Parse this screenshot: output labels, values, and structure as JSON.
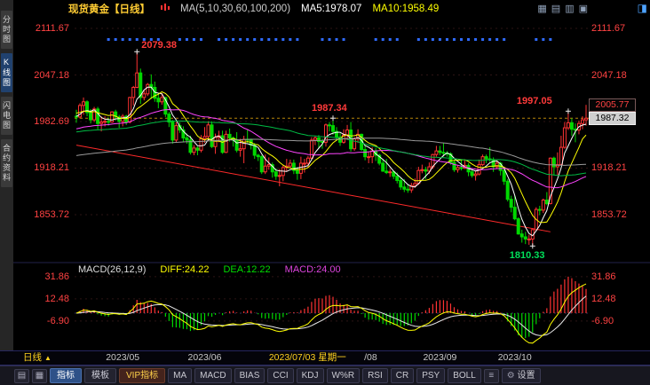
{
  "header": {
    "title": "现货黄金【日线】",
    "ma_label": "MA(5,10,30,60,100,200)",
    "ma5": "MA5:1978.07",
    "ma10": "MA10:1958.49",
    "window_icons": [
      "▦",
      "▤",
      "▥",
      "▣"
    ],
    "corner_icon": "◨"
  },
  "sidebar": {
    "tabs": [
      {
        "label": "分时图",
        "active": false
      },
      {
        "label": "K线图",
        "active": true
      },
      {
        "label": "闪电图",
        "active": false
      },
      {
        "label": "合约资料",
        "active": false
      }
    ]
  },
  "xaxis": {
    "period_label": "日线",
    "arrow": "▲"
  },
  "toolbar": {
    "left_icons": [
      "▤",
      "▦"
    ],
    "tabs": [
      {
        "label": "指标",
        "active": true
      },
      {
        "label": "模板",
        "active": false
      },
      {
        "label": "VIP指标",
        "vip": true
      }
    ],
    "indicators": [
      "MA",
      "MACD",
      "BIAS",
      "CCI",
      "KDJ",
      "W%R",
      "RSI",
      "CR",
      "PSY",
      "BOLL"
    ],
    "menu_icon": "≡",
    "gear_icon": "⚙",
    "settings_label": "设置"
  },
  "chart_data": {
    "type": "candlestick",
    "instrument": "现货黄金",
    "period": "日线",
    "price_axis_left_labels": [
      "2111.67",
      "2047.18",
      "1982.69",
      "1918.21",
      "1853.72"
    ],
    "price_axis_right_labels": [
      "2111.67",
      "2047.18",
      "1918.21",
      "1853.72"
    ],
    "price_boxes": {
      "high": {
        "text": "2005.77"
      },
      "last": {
        "text": "1987.32"
      }
    },
    "colors": {
      "up": "#ff3232",
      "down": "#00d800",
      "event_dot": "#2f6bff"
    },
    "annotations": [
      {
        "text": "2079.38",
        "day": 17,
        "price": 2079.38,
        "placement": "right",
        "color": "#ff3a3a",
        "marker": true
      },
      {
        "text": "1987.34",
        "day": 72,
        "price": 1987.34,
        "placement": "above",
        "color": "#ff3a3a",
        "marker": true
      },
      {
        "text": "1997.05",
        "day": 138,
        "price": 1997.05,
        "placement": "above-left",
        "color": "#ff3a3a",
        "marker": true
      },
      {
        "text": "1810.33",
        "day": 128,
        "price": 1810.33,
        "placement": "below",
        "color": "#00e05a",
        "marker": true
      }
    ],
    "trendline": {
      "from_day": 0,
      "from_price": 1950,
      "to_day": 133,
      "to_price": 1830,
      "color": "#ff2a2a"
    },
    "ma_settings": [
      {
        "window": 5,
        "color": "#ffffff",
        "seed": 1990
      },
      {
        "window": 10,
        "color": "#ffff00",
        "seed": 1995
      },
      {
        "window": 30,
        "color": "#ff44ff",
        "seed": 1972
      },
      {
        "window": 60,
        "color": "#00bb44",
        "seed": 1968
      },
      {
        "window": 100,
        "color": "#9a9a9a",
        "seed": 1935
      }
    ],
    "macd": {
      "label": "MACD(26,12,9)",
      "diff_label": "DIFF:24.22",
      "dea_label": "DEA:12.22",
      "macd_label": "MACD:24.00",
      "diff": 24.22,
      "dea": 12.22,
      "bar": 24.0,
      "axis_labels": [
        "31.86",
        "12.48",
        "-6.90"
      ],
      "diff_color": "#ffff00",
      "dea_color": "#e8e8e8"
    },
    "x_labels": [
      {
        "text": "2023/05",
        "day": 14,
        "style": "normal"
      },
      {
        "text": "2023/06",
        "day": 37,
        "style": "normal"
      },
      {
        "text": "2023/07/03 星期一",
        "day": 59,
        "style": "crosshair"
      },
      {
        "text": "/08",
        "day": 80,
        "style": "tail"
      },
      {
        "text": "2023/09",
        "day": 103,
        "style": "normal"
      },
      {
        "text": "2023/10",
        "day": 124,
        "style": "normal"
      }
    ],
    "event_dot_days": [
      9,
      11,
      13,
      15,
      17,
      19,
      21,
      23,
      29,
      31,
      33,
      35,
      40,
      42,
      44,
      46,
      48,
      50,
      52,
      54,
      56,
      58,
      60,
      62,
      69,
      71,
      73,
      75,
      84,
      86,
      88,
      90,
      96,
      98,
      100,
      102,
      104,
      106,
      108,
      110,
      112,
      114,
      116,
      118,
      120,
      129,
      131,
      133
    ],
    "candles": [
      [
        1990,
        1999,
        1981,
        1989
      ],
      [
        1989,
        2008,
        1987,
        2005
      ],
      [
        2005,
        2016,
        1992,
        2010
      ],
      [
        2010,
        2012,
        1990,
        1995
      ],
      [
        1995,
        2000,
        1980,
        1985
      ],
      [
        1985,
        2003,
        1982,
        2000
      ],
      [
        2000,
        2003,
        1972,
        1980
      ],
      [
        1980,
        1990,
        1969,
        1982
      ],
      [
        1982,
        1990,
        1976,
        1983
      ],
      [
        1983,
        1988,
        1977,
        1982
      ],
      [
        1982,
        1997,
        1981,
        1996
      ],
      [
        1996,
        1999,
        1984,
        1989
      ],
      [
        1989,
        1992,
        1974,
        1983
      ],
      [
        1983,
        1993,
        1976,
        1990
      ],
      [
        1990,
        1992,
        1978,
        1982
      ],
      [
        1982,
        2017,
        1980,
        2016
      ],
      [
        2016,
        2032,
        2005,
        2030
      ],
      [
        2030,
        2079.38,
        2029,
        2050
      ],
      [
        2050,
        2056,
        2007,
        2016
      ],
      [
        2016,
        2027,
        2012,
        2021
      ],
      [
        2021,
        2036,
        2018,
        2034
      ],
      [
        2034,
        2048,
        2014,
        2030
      ],
      [
        2030,
        2038,
        2010,
        2015
      ],
      [
        2015,
        2022,
        2001,
        2010
      ],
      [
        2010,
        2022,
        2006,
        2016
      ],
      [
        2016,
        2017,
        1989,
        1993
      ],
      [
        1993,
        1996,
        1975,
        1982
      ],
      [
        1982,
        1985,
        1952,
        1957
      ],
      [
        1957,
        1982,
        1954,
        1977
      ],
      [
        1977,
        1982,
        1967,
        1971
      ],
      [
        1971,
        1976,
        1954,
        1960
      ],
      [
        1960,
        1966,
        1952,
        1957
      ],
      [
        1957,
        1963,
        1937,
        1940
      ],
      [
        1940,
        1950,
        1936,
        1946
      ],
      [
        1946,
        1948,
        1936,
        1943
      ],
      [
        1943,
        1964,
        1940,
        1959
      ],
      [
        1959,
        1975,
        1953,
        1962
      ],
      [
        1962,
        1983,
        1956,
        1978
      ],
      [
        1978,
        1983,
        1946,
        1948
      ],
      [
        1948,
        1966,
        1938,
        1961
      ],
      [
        1961,
        1970,
        1954,
        1963
      ],
      [
        1963,
        1970,
        1938,
        1940
      ],
      [
        1940,
        1970,
        1939,
        1965
      ],
      [
        1965,
        1973,
        1955,
        1960
      ],
      [
        1960,
        1962,
        1948,
        1957
      ],
      [
        1957,
        1968,
        1940,
        1943
      ],
      [
        1943,
        1959,
        1934,
        1945
      ],
      [
        1945,
        1963,
        1925,
        1958
      ],
      [
        1958,
        1971,
        1953,
        1957
      ],
      [
        1957,
        1959,
        1944,
        1950
      ],
      [
        1950,
        1953,
        1931,
        1936
      ],
      [
        1936,
        1938,
        1928,
        1934
      ],
      [
        1934,
        1936,
        1910,
        1913
      ],
      [
        1913,
        1937,
        1910,
        1921
      ],
      [
        1921,
        1933,
        1916,
        1923
      ],
      [
        1923,
        1926,
        1905,
        1913
      ],
      [
        1913,
        1918,
        1902,
        1907
      ],
      [
        1907,
        1917,
        1893,
        1908
      ],
      [
        1908,
        1922,
        1900,
        1919
      ],
      [
        1919,
        1931,
        1913,
        1921
      ],
      [
        1921,
        1930,
        1918,
        1925
      ],
      [
        1925,
        1930,
        1910,
        1915
      ],
      [
        1915,
        1920,
        1902,
        1911
      ],
      [
        1911,
        1934,
        1903,
        1925
      ],
      [
        1925,
        1931,
        1912,
        1925
      ],
      [
        1925,
        1935,
        1919,
        1932
      ],
      [
        1932,
        1961,
        1930,
        1957
      ],
      [
        1957,
        1963,
        1950,
        1960
      ],
      [
        1960,
        1964,
        1946,
        1955
      ],
      [
        1955,
        1959,
        1945,
        1954
      ],
      [
        1954,
        1980,
        1948,
        1978
      ],
      [
        1978,
        1982,
        1969,
        1977
      ],
      [
        1977,
        1987.34,
        1964,
        1969
      ],
      [
        1969,
        1975,
        1957,
        1961
      ],
      [
        1961,
        1967,
        1949,
        1954
      ],
      [
        1954,
        1972,
        1952,
        1964
      ],
      [
        1964,
        1978,
        1957,
        1971
      ],
      [
        1971,
        1982,
        1941,
        1945
      ],
      [
        1945,
        1961,
        1942,
        1959
      ],
      [
        1959,
        1972,
        1953,
        1965
      ],
      [
        1965,
        1966,
        1942,
        1944
      ],
      [
        1944,
        1949,
        1929,
        1934
      ],
      [
        1934,
        1941,
        1925,
        1934
      ],
      [
        1934,
        1947,
        1925,
        1942
      ],
      [
        1942,
        1946,
        1928,
        1936
      ],
      [
        1936,
        1938,
        1922,
        1925
      ],
      [
        1925,
        1930,
        1913,
        1914
      ],
      [
        1914,
        1931,
        1910,
        1912
      ],
      [
        1912,
        1917,
        1906,
        1913
      ],
      [
        1913,
        1915,
        1903,
        1907
      ],
      [
        1907,
        1912,
        1897,
        1901
      ],
      [
        1901,
        1905,
        1888,
        1892
      ],
      [
        1892,
        1903,
        1885,
        1889
      ],
      [
        1889,
        1896,
        1884,
        1888
      ],
      [
        1888,
        1898,
        1884,
        1894
      ],
      [
        1894,
        1904,
        1891,
        1897
      ],
      [
        1897,
        1920,
        1895,
        1915
      ],
      [
        1915,
        1923,
        1911,
        1916
      ],
      [
        1916,
        1920,
        1903,
        1914
      ],
      [
        1914,
        1926,
        1910,
        1920
      ],
      [
        1920,
        1938,
        1917,
        1937
      ],
      [
        1937,
        1949,
        1934,
        1942
      ],
      [
        1942,
        1949,
        1936,
        1940
      ],
      [
        1940,
        1953,
        1934,
        1939
      ],
      [
        1939,
        1942,
        1934,
        1938
      ],
      [
        1938,
        1940,
        1923,
        1926
      ],
      [
        1926,
        1930,
        1913,
        1916
      ],
      [
        1916,
        1922,
        1912,
        1919
      ],
      [
        1919,
        1930,
        1915,
        1918
      ],
      [
        1918,
        1930,
        1917,
        1922
      ],
      [
        1922,
        1925,
        1907,
        1913
      ],
      [
        1913,
        1917,
        1905,
        1908
      ],
      [
        1908,
        1914,
        1901,
        1910
      ],
      [
        1910,
        1930,
        1908,
        1923
      ],
      [
        1923,
        1937,
        1921,
        1934
      ],
      [
        1934,
        1937,
        1925,
        1931
      ],
      [
        1931,
        1947,
        1927,
        1930
      ],
      [
        1930,
        1933,
        1913,
        1920
      ],
      [
        1920,
        1929,
        1918,
        1925
      ],
      [
        1925,
        1927,
        1908,
        1915
      ],
      [
        1915,
        1919,
        1895,
        1900
      ],
      [
        1900,
        1903,
        1872,
        1875
      ],
      [
        1875,
        1880,
        1857,
        1864
      ],
      [
        1864,
        1880,
        1846,
        1848
      ],
      [
        1848,
        1850,
        1826,
        1827
      ],
      [
        1827,
        1833,
        1815,
        1823
      ],
      [
        1823,
        1830,
        1813,
        1820
      ],
      [
        1820,
        1826,
        1812,
        1820
      ],
      [
        1820,
        1835,
        1810.33,
        1833
      ],
      [
        1833,
        1864,
        1832,
        1861
      ],
      [
        1861,
        1866,
        1853,
        1860
      ],
      [
        1860,
        1876,
        1856,
        1874
      ],
      [
        1874,
        1885,
        1867,
        1869
      ],
      [
        1869,
        1933,
        1868,
        1932
      ],
      [
        1932,
        1934,
        1908,
        1920
      ],
      [
        1920,
        1940,
        1908,
        1923
      ],
      [
        1923,
        1963,
        1922,
        1947
      ],
      [
        1947,
        1982,
        1945,
        1974
      ],
      [
        1974,
        1997.05,
        1971,
        1981
      ],
      [
        1981,
        1987,
        1963,
        1972
      ],
      [
        1972,
        1980,
        1954,
        1971
      ],
      [
        1971,
        1984,
        1965,
        1980
      ],
      [
        1980,
        1990,
        1972,
        1985
      ],
      [
        1985,
        2005.77,
        1977,
        1987.32
      ]
    ]
  }
}
